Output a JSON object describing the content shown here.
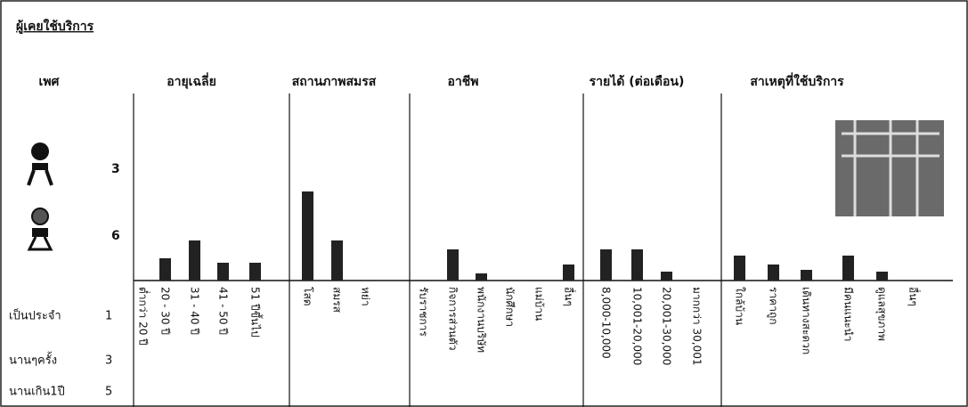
{
  "title": "ผู้เคยใช้บริการ",
  "sex": {
    "header": "เพศ",
    "male": 3,
    "female": 6
  },
  "frequency": [
    {
      "label": "เป็นประจำ",
      "value": 1
    },
    {
      "label": "นานๆครั้ง",
      "value": 3
    },
    {
      "label": "นานเกิน1ปี",
      "value": 5
    }
  ],
  "groups": [
    {
      "header": "อายุเฉลี่ย",
      "categories": [
        "ต่ำกว่า 20 ปี",
        "20 - 30 ปี",
        "31 - 40 ปี",
        "41 - 50 ปี",
        "51 ปีขึ้นไป"
      ],
      "values": [
        0,
        25,
        45,
        20,
        20
      ]
    },
    {
      "header": "สถานภาพสมรส",
      "categories": [
        "โสด",
        "สมรส",
        "หย่า"
      ],
      "values": [
        100,
        45,
        0
      ]
    },
    {
      "header": "อาชีพ",
      "categories": [
        "รับราชการ",
        "กิจการส่วนตัว",
        "พนักงานบริษัท",
        "นักศึกษา",
        "แม่บ้าน",
        "อื่นๆ"
      ],
      "values": [
        0,
        35,
        8,
        0,
        0,
        18
      ]
    },
    {
      "header": "รายได้ (ต่อเดือน)",
      "categories": [
        "8,000-10,000",
        "10,001-20,000",
        "20,001-30,000",
        "มากกว่า 30,001"
      ],
      "values": [
        35,
        35,
        10,
        0
      ]
    },
    {
      "header": "สาเหตุที่ใช้บริการ",
      "categories": [
        "ใกล้บ้าน",
        "ราคาถูก",
        "เดินทางสะดวก",
        "มีคนแนะนำ",
        "ดูแลสุขภาพ",
        "อื่นๆ"
      ],
      "values": [
        28,
        18,
        12,
        28,
        10,
        0
      ]
    }
  ]
}
